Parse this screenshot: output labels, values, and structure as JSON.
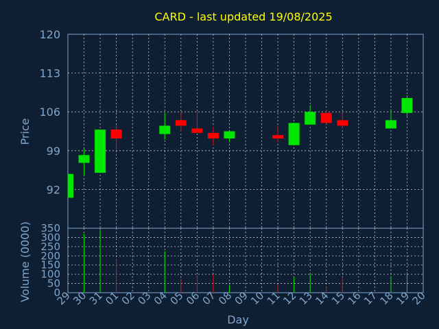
{
  "chart_data": {
    "type": "candlestick",
    "title": "CARD - last updated 19/08/2025",
    "ylabel": "Price",
    "volume_ylabel": "Volume (0000)",
    "xlabel": "Day",
    "ylim": [
      85,
      120
    ],
    "yticks": [
      92,
      99,
      106,
      113,
      120
    ],
    "volume_ylim": [
      0,
      350
    ],
    "volume_yticks": [
      0,
      50,
      100,
      150,
      200,
      250,
      300,
      350
    ],
    "x_labels": [
      "29",
      "30",
      "31",
      "01",
      "02",
      "03",
      "04",
      "05",
      "06",
      "07",
      "08",
      "09",
      "10",
      "11",
      "12",
      "13",
      "14",
      "15",
      "16",
      "17",
      "18",
      "19",
      "20"
    ],
    "grid": true,
    "colors": {
      "background": "#0f1f33",
      "up": "#00e600",
      "down": "#ff0000",
      "title": "#ffff00",
      "axis_text": "#7fa6cc",
      "grid": "#ffffff",
      "frame": "#7fa6cc"
    },
    "candles": [
      {
        "x": 0,
        "open": 90.5,
        "high": 94.8,
        "low": 90.5,
        "close": 94.8,
        "volume": 0
      },
      {
        "x": 1,
        "open": 96.8,
        "high": 99.3,
        "low": 94.5,
        "close": 98.2,
        "volume": 320
      },
      {
        "x": 2,
        "open": 95.0,
        "high": 102.8,
        "low": 95.0,
        "close": 102.8,
        "volume": 340
      },
      {
        "x": 3,
        "open": 102.8,
        "high": 103.7,
        "low": 99.2,
        "close": 101.2,
        "volume": 185
      },
      {
        "x": 6,
        "open": 102.0,
        "high": 105.8,
        "low": 101.0,
        "close": 103.5,
        "volume": 225
      },
      {
        "x": 7,
        "open": 104.5,
        "high": 106.0,
        "low": 102.5,
        "close": 103.5,
        "volume": 75
      },
      {
        "x": 8,
        "open": 103.0,
        "high": 106.2,
        "low": 102.2,
        "close": 102.2,
        "volume": 95
      },
      {
        "x": 9,
        "open": 102.2,
        "high": 103.3,
        "low": 100.0,
        "close": 101.2,
        "volume": 100
      },
      {
        "x": 10,
        "open": 101.2,
        "high": 102.5,
        "low": 100.5,
        "close": 102.5,
        "volume": 40
      },
      {
        "x": 13,
        "open": 101.8,
        "high": 103.5,
        "low": 100.5,
        "close": 101.2,
        "volume": 45
      },
      {
        "x": 14,
        "open": 100.0,
        "high": 104.0,
        "low": 100.0,
        "close": 104.0,
        "volume": 85
      },
      {
        "x": 15,
        "open": 103.7,
        "high": 107.2,
        "low": 103.7,
        "close": 106.0,
        "volume": 105
      },
      {
        "x": 16,
        "open": 105.8,
        "high": 106.4,
        "low": 103.8,
        "close": 104.0,
        "volume": 35
      },
      {
        "x": 17,
        "open": 104.5,
        "high": 105.9,
        "low": 103.0,
        "close": 103.5,
        "volume": 85
      },
      {
        "x": 20,
        "open": 103.0,
        "high": 106.5,
        "low": 103.0,
        "close": 104.5,
        "volume": 90
      },
      {
        "x": 21,
        "open": 105.8,
        "high": 109.0,
        "low": 105.0,
        "close": 108.5,
        "volume": 110
      }
    ]
  }
}
